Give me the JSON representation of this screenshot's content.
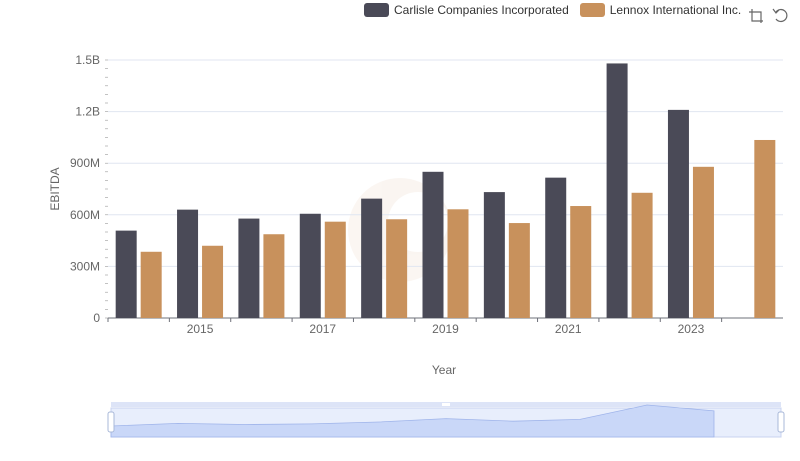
{
  "chart_data": {
    "type": "bar",
    "title": "",
    "xlabel": "Year",
    "ylabel": "EBITDA",
    "ylim": [
      0,
      1500000000
    ],
    "yticks": [
      {
        "value": 0,
        "label": "0"
      },
      {
        "value": 300000000,
        "label": "300M"
      },
      {
        "value": 600000000,
        "label": "600M"
      },
      {
        "value": 900000000,
        "label": "900M"
      },
      {
        "value": 1200000000,
        "label": "1.2B"
      },
      {
        "value": 1500000000,
        "label": "1.5B"
      }
    ],
    "categories": [
      "2014",
      "2015",
      "2016",
      "2017",
      "2018",
      "2019",
      "2020",
      "2021",
      "2022",
      "2023",
      "2024"
    ],
    "xtick_labels": [
      "2015",
      "2017",
      "2019",
      "2021",
      "2023"
    ],
    "legend_position": "top-right",
    "grid": true,
    "series": [
      {
        "name": "Carlisle Companies Incorporated",
        "color": "#4a4a57",
        "values": [
          508000000,
          630000000,
          578000000,
          606000000,
          694000000,
          850000000,
          732000000,
          816000000,
          1480000000,
          1210000000,
          null
        ]
      },
      {
        "name": "Lennox International Inc.",
        "color": "#c8915c",
        "values": [
          385000000,
          420000000,
          487000000,
          560000000,
          574000000,
          632000000,
          552000000,
          651000000,
          728000000,
          879000000,
          1035000000
        ]
      }
    ]
  },
  "toolbox": {
    "zoom_icon": "zoom-icon",
    "restore_icon": "restore-icon"
  }
}
